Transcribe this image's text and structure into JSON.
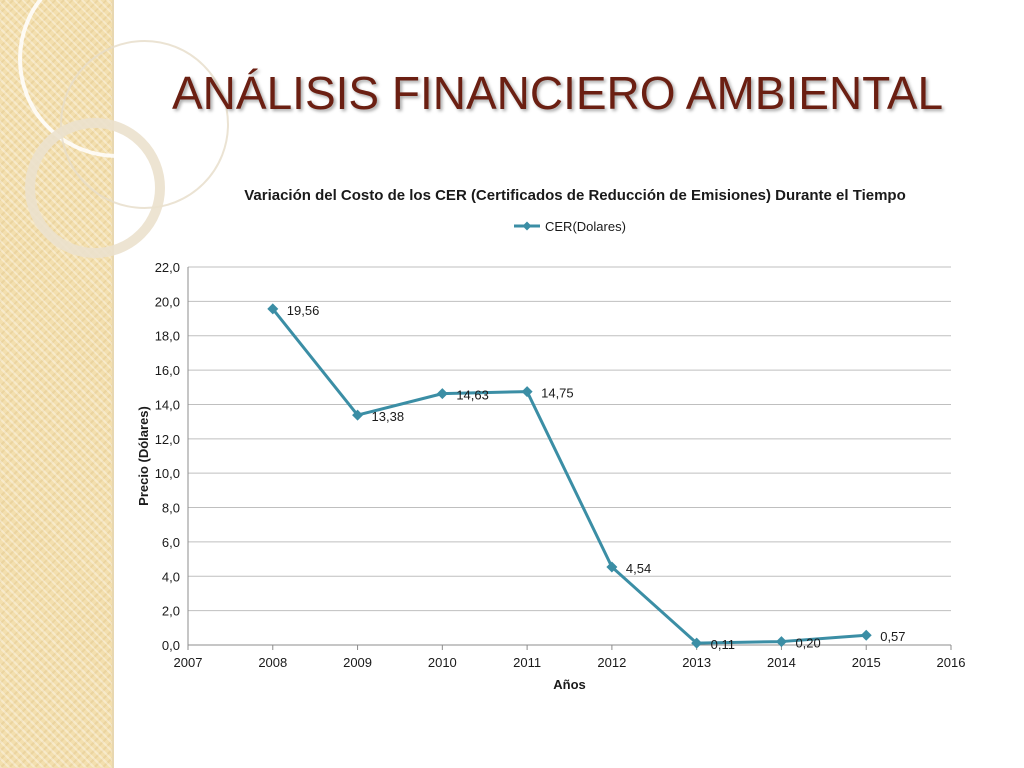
{
  "slide": {
    "title": "ANÁLISIS FINANCIERO AMBIENTAL"
  },
  "colors": {
    "title": "#6b1f12",
    "series": "#3b8ea5",
    "grid": "#bfbfbf",
    "background_strip": "#f3dfae"
  },
  "chart_data": {
    "type": "line",
    "title": "Variación del Costo de los CER (Certificados de Reducción de Emisiones) Durante el Tiempo",
    "xlabel": "Años",
    "ylabel": "Precio (Dólares)",
    "xlim": [
      2007,
      2016
    ],
    "ylim": [
      0,
      22
    ],
    "x_ticks": [
      "2007",
      "2008",
      "2009",
      "2010",
      "2011",
      "2012",
      "2013",
      "2014",
      "2015",
      "2016"
    ],
    "y_ticks": [
      "0,0",
      "2,0",
      "4,0",
      "6,0",
      "8,0",
      "10,0",
      "12,0",
      "14,0",
      "16,0",
      "18,0",
      "20,0",
      "22,0"
    ],
    "grid": true,
    "legend_position": "top",
    "series": [
      {
        "name": "CER(Dolares)",
        "x": [
          2008,
          2009,
          2010,
          2011,
          2012,
          2013,
          2014,
          2015
        ],
        "y": [
          19.56,
          13.38,
          14.63,
          14.75,
          4.54,
          0.11,
          0.2,
          0.57
        ],
        "labels": [
          "19,56",
          "13,38",
          "14,63",
          "14,75",
          "4,54",
          "0,11",
          "0,20",
          "0,57"
        ]
      }
    ]
  }
}
